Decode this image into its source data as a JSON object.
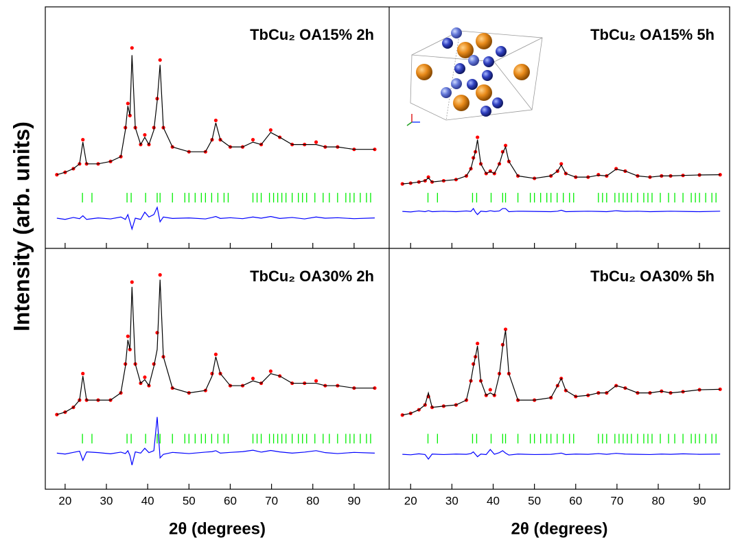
{
  "chart_data": [
    {
      "type": "line",
      "title": "TbCu₂ OA15% 2h",
      "ylabel": "Intensity (arb. units)",
      "xlim": [
        15.2,
        98.5
      ],
      "ylim": [
        0,
        100
      ],
      "xticks": [
        20,
        30,
        40,
        50,
        60,
        70,
        80,
        90
      ],
      "x": [
        18,
        20,
        22,
        23.5,
        24.3,
        25.2,
        28,
        31,
        33.5,
        34.6,
        35.2,
        35.7,
        36.2,
        37,
        38.3,
        39.3,
        40.3,
        41.5,
        42.3,
        43,
        43.8,
        46,
        50,
        54,
        55.6,
        56.5,
        57.6,
        60,
        63,
        65.5,
        67.5,
        69.8,
        72,
        75,
        78,
        80.8,
        83,
        86,
        90,
        95
      ],
      "series": [
        {
          "mode": "markers",
          "color": "#ff0000",
          "values": [
            30.5,
            31.5,
            33,
            35,
            45,
            35,
            35,
            36,
            38,
            50,
            60,
            55,
            83,
            50,
            43,
            47,
            43,
            50,
            62,
            78,
            50,
            42,
            40,
            40,
            45,
            53,
            45,
            42,
            42,
            45,
            43,
            49,
            46,
            43,
            43,
            44,
            42,
            42,
            41,
            41
          ]
        },
        {
          "mode": "line",
          "color": "#000000",
          "values": [
            30.5,
            31.5,
            33,
            35,
            44,
            35,
            35,
            36,
            38,
            49,
            59,
            55,
            80,
            50,
            43,
            46,
            43,
            49,
            61,
            76,
            50,
            42,
            40,
            40,
            45,
            52,
            45,
            42,
            42,
            44,
            43,
            48,
            46,
            43,
            43,
            43,
            42,
            42,
            41,
            41
          ]
        },
        {
          "mode": "line",
          "color": "#0000ff",
          "values": [
            12.5,
            12,
            12.8,
            12.3,
            13.5,
            12,
            12.6,
            12.2,
            13,
            12,
            14,
            11,
            8,
            12.5,
            12,
            15,
            13,
            14,
            17,
            11,
            13,
            12.4,
            12.6,
            12.2,
            12.8,
            13.2,
            12.4,
            12.7,
            12.3,
            13,
            12.5,
            13.2,
            12.4,
            12.8,
            12.2,
            13,
            12.5,
            12.7,
            12.3,
            12.6
          ]
        },
        {
          "mode": "ticks",
          "color": "#00ee00",
          "x": [
            24.2,
            26.5,
            35.0,
            36.0,
            39.5,
            42.3,
            43.0,
            46,
            49,
            50,
            51.5,
            53,
            54,
            55.5,
            57,
            58.5,
            59.5,
            65.5,
            66.5,
            67.5,
            69.5,
            70.5,
            71.5,
            72.5,
            73.5,
            75,
            76.5,
            77.5,
            78.5,
            80.5,
            82.5,
            84,
            86,
            88,
            89,
            90,
            91.5,
            93,
            94
          ]
        }
      ]
    },
    {
      "type": "line",
      "title": "TbCu₂ OA15% 5h",
      "xlim": [
        14.8,
        97.3
      ],
      "ylim": [
        0,
        100
      ],
      "xticks": [
        20,
        30,
        40,
        50,
        60,
        70,
        80,
        90
      ],
      "x": [
        18,
        20,
        22,
        23.5,
        24.3,
        25.2,
        28,
        31,
        33.5,
        34.6,
        35.2,
        35.7,
        36.2,
        37,
        38.3,
        39.3,
        40.3,
        41.5,
        42.3,
        43,
        43.8,
        46,
        50,
        54,
        55.6,
        56.5,
        57.6,
        60,
        63,
        65.5,
        67.5,
        69.8,
        72,
        75,
        78,
        80.8,
        83,
        86,
        90,
        95
      ],
      "series": [
        {
          "mode": "markers",
          "color": "#ff0000",
          "values": [
            26.7,
            27,
            27.5,
            28,
            29.5,
            27.5,
            28,
            28.5,
            30,
            33,
            37.5,
            40,
            46,
            35,
            31,
            32,
            31,
            35,
            40,
            42.6,
            36,
            30,
            29,
            30,
            32,
            35,
            31,
            29.5,
            29.5,
            30.5,
            30,
            33,
            32,
            30,
            29.5,
            30,
            30,
            30.2,
            30.4,
            30.5
          ]
        },
        {
          "mode": "line",
          "color": "#000000",
          "values": [
            26.7,
            27,
            27.5,
            28,
            29.2,
            27.5,
            28,
            28.5,
            30,
            33,
            37,
            40,
            45,
            35,
            31,
            31.8,
            31,
            35,
            39.5,
            42,
            36,
            30,
            29,
            30,
            32,
            34.5,
            31,
            29.5,
            29.5,
            30.3,
            30,
            32.8,
            32,
            30,
            29.5,
            30,
            30,
            30.2,
            30.4,
            30.5
          ]
        },
        {
          "mode": "line",
          "color": "#0000ff",
          "values": [
            15.3,
            15.1,
            15.5,
            15.2,
            15.6,
            15.2,
            15.4,
            15.2,
            15.5,
            15.3,
            16.5,
            15,
            14,
            15.4,
            15.2,
            15.6,
            15.3,
            15.5,
            16.5,
            16.5,
            15.2,
            15.4,
            15.3,
            15.2,
            15.4,
            15.8,
            15.2,
            15.3,
            15.4,
            15.3,
            15.2,
            15.6,
            15.3,
            15.4,
            15.2,
            15.3,
            15.4,
            15.3,
            15.2,
            15.4
          ]
        },
        {
          "mode": "ticks",
          "color": "#00ee00",
          "x": [
            24.2,
            26.5,
            35.0,
            36.0,
            39.5,
            42.3,
            43.0,
            46,
            49,
            50,
            51.5,
            53,
            54,
            55.5,
            57,
            58.5,
            59.5,
            65.5,
            66.5,
            67.5,
            69.5,
            70.5,
            71.5,
            72.5,
            73.5,
            75,
            76.5,
            77.5,
            78.5,
            80.5,
            82.5,
            84,
            86,
            88,
            89,
            90,
            91.5,
            93,
            94
          ]
        }
      ]
    },
    {
      "type": "line",
      "title": "TbCu₂ OA30% 2h",
      "xlabel": "2θ (degrees)",
      "xlim": [
        15.2,
        98.5
      ],
      "ylim": [
        0,
        100
      ],
      "xticks": [
        20,
        30,
        40,
        50,
        60,
        70,
        80,
        90
      ],
      "x": [
        18,
        20,
        22,
        23.5,
        24.3,
        25.2,
        28,
        31,
        33.5,
        34.6,
        35.2,
        35.7,
        36.2,
        37,
        38.3,
        39.3,
        40.3,
        41.5,
        42.3,
        43,
        43.8,
        46,
        50,
        54,
        55.6,
        56.5,
        57.6,
        60,
        63,
        65.5,
        67.5,
        69.8,
        72,
        75,
        78,
        80.8,
        83,
        86,
        90,
        95
      ],
      "series": [
        {
          "mode": "markers",
          "color": "#ff0000",
          "values": [
            31,
            32,
            34,
            37,
            48,
            37,
            37,
            37,
            40,
            52,
            63.5,
            58,
            86,
            52,
            44,
            46.5,
            43,
            52,
            65,
            89,
            55,
            42,
            40,
            41,
            48,
            56,
            48,
            43,
            43,
            46,
            44,
            49,
            47,
            44,
            44,
            45,
            43,
            43,
            42,
            42
          ]
        },
        {
          "mode": "line",
          "color": "#000000",
          "values": [
            31,
            32,
            34,
            37,
            47,
            37,
            37,
            37,
            40,
            51,
            62,
            58,
            84,
            52,
            44,
            45.5,
            43,
            51,
            58,
            87,
            55,
            42,
            40,
            41,
            47,
            55,
            48,
            43,
            43,
            45,
            44,
            48,
            47,
            44,
            44,
            44,
            43,
            43,
            42,
            42
          ]
        },
        {
          "mode": "line",
          "color": "#0000ff",
          "values": [
            15,
            14.6,
            15.3,
            15.8,
            12,
            15.5,
            15.2,
            14.7,
            15.4,
            14.8,
            16,
            14,
            10,
            15.5,
            15,
            17,
            15.2,
            16,
            30,
            13,
            14.5,
            15.3,
            14.8,
            15.4,
            15.6,
            16,
            15,
            15.3,
            15.6,
            16.2,
            15.4,
            16.1,
            15.5,
            15,
            15.4,
            16,
            15.2,
            14.8,
            15.3,
            15
          ]
        },
        {
          "mode": "ticks",
          "color": "#00ee00",
          "x": [
            24.2,
            26.5,
            35.0,
            36.0,
            39.5,
            42.3,
            43.0,
            46,
            49,
            50,
            51.5,
            53,
            54,
            55.5,
            57,
            58.5,
            59.5,
            65.5,
            66.5,
            67.5,
            69.5,
            70.5,
            71.5,
            72.5,
            73.5,
            75,
            76.5,
            77.5,
            78.5,
            80.5,
            82.5,
            84,
            86,
            88,
            89,
            90,
            91.5,
            93,
            94
          ]
        }
      ]
    },
    {
      "type": "line",
      "title": "TbCu₂ OA30% 5h",
      "xlabel": "2θ (degrees)",
      "xlim": [
        14.8,
        97.3
      ],
      "ylim": [
        0,
        100
      ],
      "xticks": [
        20,
        30,
        40,
        50,
        60,
        70,
        80,
        90
      ],
      "x": [
        18,
        20,
        22,
        23.5,
        24.3,
        25.2,
        28,
        31,
        33.5,
        34.6,
        35.2,
        35.7,
        36.2,
        37,
        38.3,
        39.3,
        40.3,
        41.5,
        42.3,
        43,
        43.8,
        46,
        50,
        54,
        55.6,
        56.5,
        57.6,
        60,
        63,
        65.5,
        67.5,
        69.8,
        72,
        75,
        78,
        80.8,
        83,
        86,
        90,
        95
      ],
      "series": [
        {
          "mode": "markers",
          "color": "#ff0000",
          "values": [
            30.8,
            31.5,
            33,
            35,
            38.5,
            34,
            34.5,
            35,
            37,
            45,
            52,
            55,
            60.5,
            45,
            39,
            41.3,
            39,
            48,
            60,
            66.4,
            48,
            37,
            37,
            38,
            43,
            46,
            41,
            38.5,
            39,
            40,
            40,
            43,
            42,
            40,
            40,
            40.7,
            40,
            40.5,
            41.3,
            41.5
          ]
        },
        {
          "mode": "line",
          "color": "#000000",
          "values": [
            30.8,
            31.5,
            33,
            35,
            40,
            34,
            34.5,
            35,
            37,
            45,
            51,
            55,
            59.5,
            45,
            39,
            40,
            39,
            47.5,
            59,
            66,
            48,
            37,
            37,
            38,
            43,
            46,
            41,
            38.5,
            39,
            40,
            40,
            43,
            42,
            40,
            40,
            40.7,
            40,
            40.5,
            41.3,
            41.5
          ]
        },
        {
          "mode": "line",
          "color": "#0000ff",
          "values": [
            14.5,
            14.3,
            14.7,
            14.4,
            12.5,
            14.6,
            14.4,
            14.6,
            14.5,
            14.8,
            15.5,
            14.5,
            13.5,
            14.6,
            14.4,
            16.5,
            14.5,
            15.2,
            16,
            15,
            14.2,
            14.6,
            14.4,
            14.5,
            14.8,
            15,
            14.4,
            14.6,
            14.5,
            14.8,
            14.5,
            14.9,
            14.6,
            14.5,
            14.4,
            14.6,
            14.5,
            14.7,
            14.5,
            14.6
          ]
        },
        {
          "mode": "ticks",
          "color": "#00ee00",
          "x": [
            24.2,
            26.5,
            35.0,
            36.0,
            39.5,
            42.3,
            43.0,
            46,
            49,
            50,
            51.5,
            53,
            54,
            55.5,
            57,
            58.5,
            59.5,
            65.5,
            66.5,
            67.5,
            69.5,
            70.5,
            71.5,
            72.5,
            73.5,
            75,
            76.5,
            77.5,
            78.5,
            80.5,
            82.5,
            84,
            86,
            88,
            89,
            90,
            91.5,
            93,
            94
          ]
        }
      ]
    }
  ]
}
